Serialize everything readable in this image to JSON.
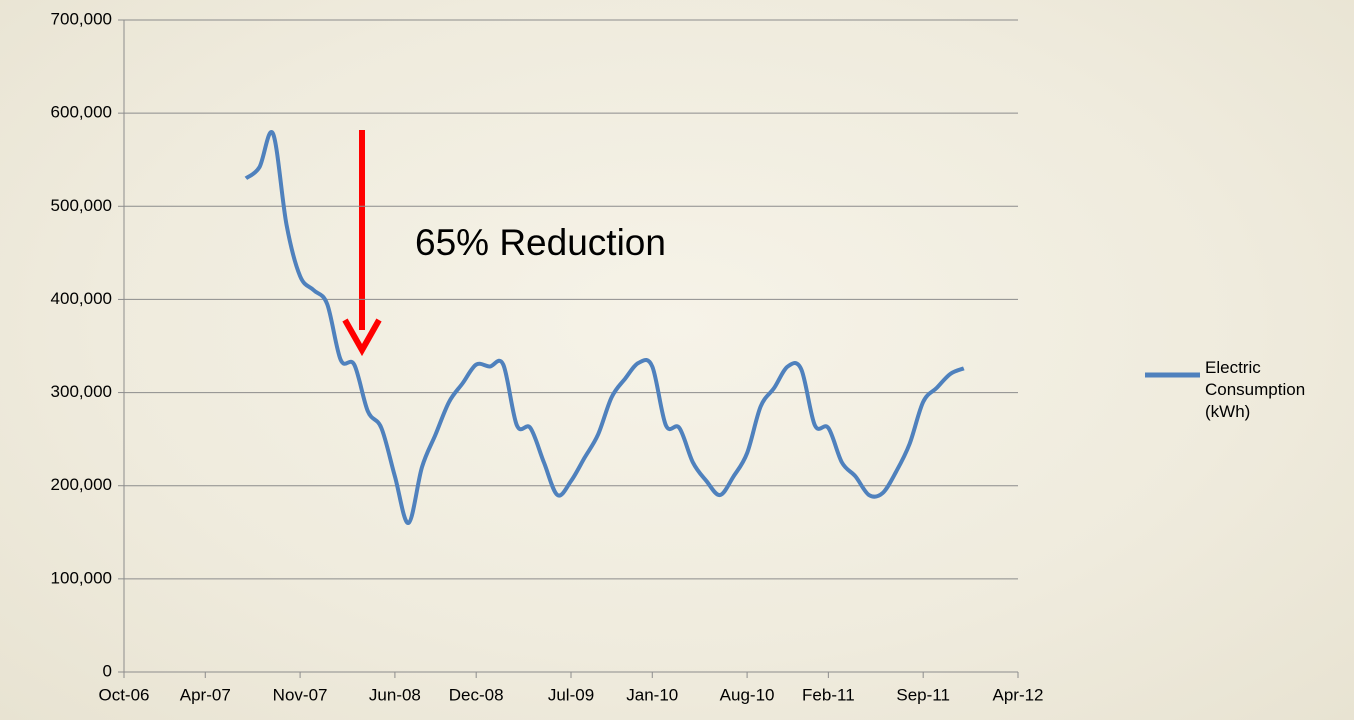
{
  "chart_data": {
    "type": "line",
    "annotation": "65% Reduction",
    "x": [
      "2007-07",
      "2007-08",
      "2007-09",
      "2007-10",
      "2007-11",
      "2007-12",
      "2008-01",
      "2008-02",
      "2008-03",
      "2008-04",
      "2008-05",
      "2008-06",
      "2008-07",
      "2008-08",
      "2008-09",
      "2008-10",
      "2008-11",
      "2008-12",
      "2009-01",
      "2009-02",
      "2009-03",
      "2009-04",
      "2009-05",
      "2009-06",
      "2009-07",
      "2009-08",
      "2009-09",
      "2009-10",
      "2009-11",
      "2009-12",
      "2010-01",
      "2010-02",
      "2010-03",
      "2010-04",
      "2010-05",
      "2010-06",
      "2010-07",
      "2010-08",
      "2010-09",
      "2010-10",
      "2010-11",
      "2010-12",
      "2011-01",
      "2011-02",
      "2011-03",
      "2011-04",
      "2011-05",
      "2011-06",
      "2011-07",
      "2011-08",
      "2011-09",
      "2011-10",
      "2011-11",
      "2011-12"
    ],
    "series": [
      {
        "name": "Electric Consumption (kWh)",
        "color": "#4f81bd",
        "values": [
          530000,
          542000,
          578000,
          480000,
          425000,
          410000,
          395000,
          335000,
          330000,
          280000,
          262000,
          210000,
          160000,
          220000,
          255000,
          290000,
          310000,
          330000,
          328000,
          330000,
          265000,
          262000,
          225000,
          190000,
          205000,
          230000,
          255000,
          295000,
          315000,
          332000,
          328000,
          265000,
          262000,
          225000,
          205000,
          190000,
          210000,
          235000,
          285000,
          305000,
          328000,
          325000,
          265000,
          262000,
          225000,
          210000,
          190000,
          192000,
          215000,
          245000,
          290000,
          305000,
          320000,
          326000
        ]
      }
    ],
    "xlim": [
      "2006-10",
      "2012-04"
    ],
    "xticks": [
      {
        "value": "2006-10",
        "label": "Oct-06"
      },
      {
        "value": "2007-04",
        "label": "Apr-07"
      },
      {
        "value": "2007-11",
        "label": "Nov-07"
      },
      {
        "value": "2008-06",
        "label": "Jun-08"
      },
      {
        "value": "2008-12",
        "label": "Dec-08"
      },
      {
        "value": "2009-07",
        "label": "Jul-09"
      },
      {
        "value": "2010-01",
        "label": "Jan-10"
      },
      {
        "value": "2010-08",
        "label": "Aug-10"
      },
      {
        "value": "2011-02",
        "label": "Feb-11"
      },
      {
        "value": "2011-09",
        "label": "Sep-11"
      },
      {
        "value": "2012-04",
        "label": "Apr-12"
      }
    ],
    "ylim": [
      0,
      700000
    ],
    "yticks": [
      0,
      {
        "value": 100000,
        "label": "100,000"
      },
      {
        "value": 200000,
        "label": "200,000"
      },
      {
        "value": 300000,
        "label": "300,000"
      },
      {
        "value": 400000,
        "label": "400,000"
      },
      {
        "value": 500000,
        "label": "500,000"
      },
      {
        "value": 600000,
        "label": "600,000"
      },
      {
        "value": 700000,
        "label": "700,000"
      }
    ],
    "grid": true,
    "legend": "right"
  }
}
